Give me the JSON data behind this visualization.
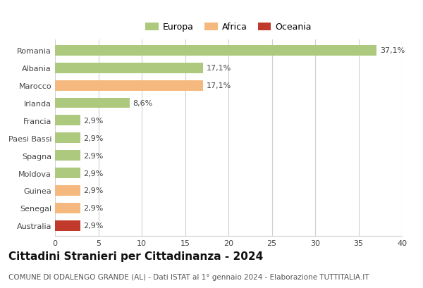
{
  "categories": [
    "Romania",
    "Albania",
    "Marocco",
    "Irlanda",
    "Francia",
    "Paesi Bassi",
    "Spagna",
    "Moldova",
    "Guinea",
    "Senegal",
    "Australia"
  ],
  "values": [
    37.1,
    17.1,
    17.1,
    8.6,
    2.9,
    2.9,
    2.9,
    2.9,
    2.9,
    2.9,
    2.9
  ],
  "labels": [
    "37,1%",
    "17,1%",
    "17,1%",
    "8,6%",
    "2,9%",
    "2,9%",
    "2,9%",
    "2,9%",
    "2,9%",
    "2,9%",
    "2,9%"
  ],
  "colors": [
    "#adc97e",
    "#adc97e",
    "#f5b97f",
    "#adc97e",
    "#adc97e",
    "#adc97e",
    "#adc97e",
    "#adc97e",
    "#f5b97f",
    "#f5b97f",
    "#c0392b"
  ],
  "legend_labels": [
    "Europa",
    "Africa",
    "Oceania"
  ],
  "legend_colors": [
    "#adc97e",
    "#f5b97f",
    "#c0392b"
  ],
  "title": "Cittadini Stranieri per Cittadinanza - 2024",
  "subtitle": "COMUNE DI ODALENGO GRANDE (AL) - Dati ISTAT al 1° gennaio 2024 - Elaborazione TUTTITALIA.IT",
  "xlim": [
    0,
    40
  ],
  "xticks": [
    0,
    5,
    10,
    15,
    20,
    25,
    30,
    35,
    40
  ],
  "background_color": "#ffffff",
  "grid_color": "#d0d0d0",
  "bar_height": 0.6,
  "label_fontsize": 8,
  "title_fontsize": 11,
  "subtitle_fontsize": 7.5,
  "tick_fontsize": 8,
  "category_fontsize": 8
}
